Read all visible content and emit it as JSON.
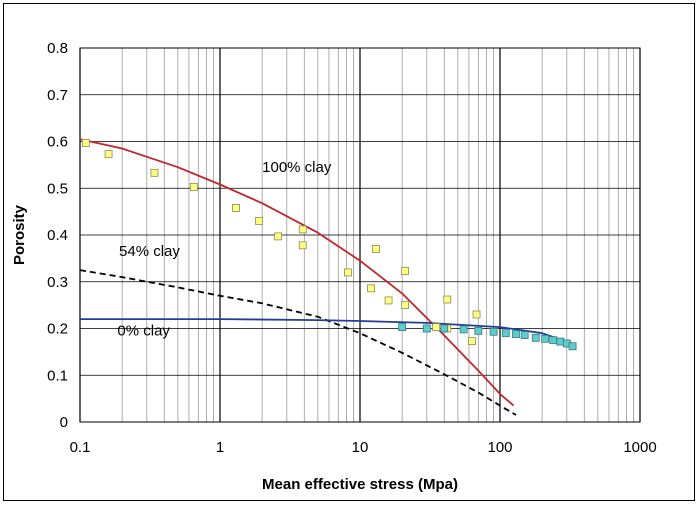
{
  "chart_data": {
    "type": "scatter",
    "title": "",
    "xlabel": "Mean effective stress (Mpa)",
    "ylabel": "Porosity",
    "xscale": "log",
    "xlim": [
      0.1,
      1000
    ],
    "ylim": [
      0,
      0.8
    ],
    "x_ticks": [
      0.1,
      1,
      10,
      100,
      1000
    ],
    "x_tick_labels": [
      "0.1",
      "1",
      "10",
      "100",
      "1000"
    ],
    "y_ticks": [
      0,
      0.1,
      0.2,
      0.3,
      0.4,
      0.5,
      0.6,
      0.7,
      0.8
    ],
    "y_tick_labels": [
      "0",
      "0.1",
      "0.2",
      "0.3",
      "0.4",
      "0.5",
      "0.6",
      "0.7",
      "0.8"
    ],
    "grid": true,
    "legend": "none",
    "annotations": [
      {
        "text": "100% clay",
        "x": 2.0,
        "y": 0.535
      },
      {
        "text": "54% clay",
        "x": 0.19,
        "y": 0.355
      },
      {
        "text": "0% clay",
        "x": 0.185,
        "y": 0.185
      }
    ],
    "series": [
      {
        "style": "line",
        "color": "#c0262a",
        "dash": "solid",
        "x": [
          0.1,
          0.2,
          0.5,
          1,
          2,
          5,
          10,
          20,
          40,
          70,
          100,
          125
        ],
        "y": [
          0.605,
          0.585,
          0.545,
          0.508,
          0.468,
          0.405,
          0.345,
          0.275,
          0.185,
          0.11,
          0.06,
          0.035
        ]
      },
      {
        "style": "line",
        "color": "#000000",
        "dash": "dashed",
        "x": [
          0.1,
          0.2,
          0.5,
          1,
          2,
          5,
          10,
          20,
          40,
          70,
          100,
          130
        ],
        "y": [
          0.325,
          0.31,
          0.288,
          0.27,
          0.254,
          0.225,
          0.19,
          0.148,
          0.102,
          0.063,
          0.035,
          0.015
        ]
      },
      {
        "style": "line",
        "color": "#1f3f99",
        "dash": "solid",
        "x": [
          0.1,
          1,
          5,
          10,
          30,
          100,
          200,
          350
        ],
        "y": [
          0.22,
          0.22,
          0.218,
          0.216,
          0.212,
          0.203,
          0.19,
          0.165
        ]
      },
      {
        "style": "markers",
        "marker": "square",
        "fill": "#ffff80",
        "stroke": "#8a8a5a",
        "x": [
          0.11,
          0.16,
          0.34,
          0.65,
          1.3,
          1.9,
          2.6,
          3.9,
          3.9,
          8.2,
          12,
          13,
          16,
          21,
          21,
          35,
          42,
          42,
          63,
          68
        ],
        "y": [
          0.597,
          0.573,
          0.533,
          0.503,
          0.458,
          0.43,
          0.397,
          0.412,
          0.378,
          0.32,
          0.286,
          0.37,
          0.26,
          0.323,
          0.25,
          0.203,
          0.262,
          0.2,
          0.173,
          0.23
        ]
      },
      {
        "style": "markers",
        "marker": "square",
        "fill": "#5ecccc",
        "stroke": "#3a7a7a",
        "x": [
          20,
          30,
          40,
          55,
          70,
          90,
          110,
          130,
          150,
          180,
          210,
          240,
          270,
          300,
          330
        ],
        "y": [
          0.203,
          0.2,
          0.2,
          0.198,
          0.195,
          0.193,
          0.19,
          0.188,
          0.186,
          0.18,
          0.178,
          0.175,
          0.172,
          0.168,
          0.162
        ]
      }
    ]
  }
}
